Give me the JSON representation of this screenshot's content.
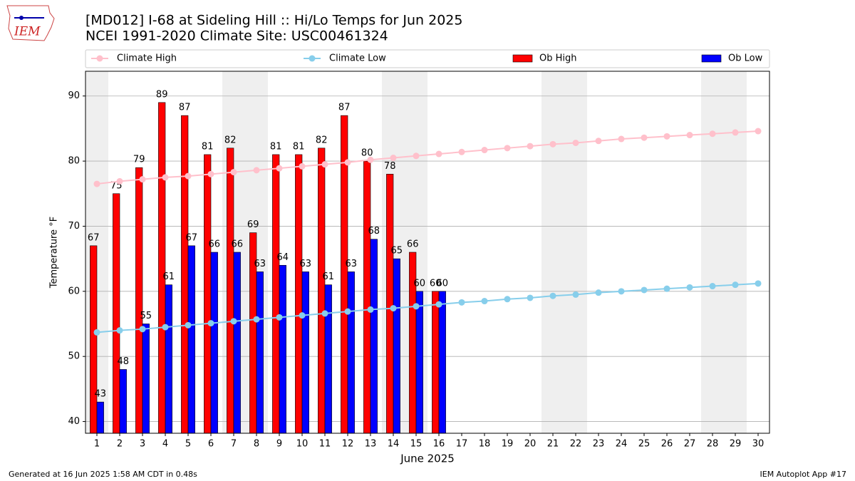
{
  "chart_data": {
    "type": "bar_line",
    "title": "[MD012] I-68 at Sideling Hill :: Hi/Lo Temps for Jun 2025",
    "subtitle": "NCEI 1991-2020 Climate Site: USC00461324",
    "logo_text": "IEM",
    "x_label": "June 2025",
    "y_label": "Temperature °F",
    "footer_left": "Generated at 16 Jun 2025 1:58 AM CDT in 0.48s",
    "footer_right": "IEM Autoplot App #17",
    "x": [
      1,
      2,
      3,
      4,
      5,
      6,
      7,
      8,
      9,
      10,
      11,
      12,
      13,
      14,
      15,
      16,
      17,
      18,
      19,
      20,
      21,
      22,
      23,
      24,
      25,
      26,
      27,
      28,
      29,
      30
    ],
    "xlim": [
      0.5,
      30.5
    ],
    "xticks": [
      1,
      2,
      3,
      4,
      5,
      6,
      7,
      8,
      9,
      10,
      11,
      12,
      13,
      14,
      15,
      16,
      17,
      18,
      19,
      20,
      21,
      22,
      23,
      24,
      25,
      26,
      27,
      28,
      29,
      30
    ],
    "ylim": [
      38.2,
      93.8
    ],
    "yticks": [
      40,
      50,
      60,
      70,
      80,
      90
    ],
    "grid": true,
    "shade_spans": [
      [
        0.5,
        1.5
      ],
      [
        6.5,
        8.5
      ],
      [
        13.5,
        15.5
      ],
      [
        20.5,
        22.5
      ],
      [
        27.5,
        29.5
      ]
    ],
    "shade_color": "#efefef",
    "legend": "top",
    "series": [
      {
        "name": "Climate High",
        "type": "line",
        "color": "#ffc0cb",
        "values": [
          76.5,
          76.9,
          77.2,
          77.5,
          77.7,
          78.0,
          78.3,
          78.6,
          78.9,
          79.2,
          79.5,
          79.8,
          80.2,
          80.5,
          80.8,
          81.1,
          81.4,
          81.7,
          82.0,
          82.3,
          82.6,
          82.8,
          83.1,
          83.4,
          83.6,
          83.8,
          84.0,
          84.2,
          84.4,
          84.6
        ]
      },
      {
        "name": "Climate Low",
        "type": "line",
        "color": "#87ceeb",
        "values": [
          53.7,
          54.0,
          54.2,
          54.5,
          54.8,
          55.1,
          55.4,
          55.7,
          56.0,
          56.3,
          56.6,
          56.9,
          57.2,
          57.4,
          57.7,
          58.0,
          58.3,
          58.5,
          58.8,
          59.0,
          59.3,
          59.5,
          59.8,
          60.0,
          60.2,
          60.4,
          60.6,
          60.8,
          61.0,
          61.2
        ]
      },
      {
        "name": "Ob High",
        "type": "bar",
        "color": "#ff0000",
        "values": [
          67,
          75,
          79,
          89,
          87,
          81,
          82,
          69,
          81,
          81,
          82,
          87,
          80,
          78,
          66,
          60,
          null,
          null,
          null,
          null,
          null,
          null,
          null,
          null,
          null,
          null,
          null,
          null,
          null,
          null
        ]
      },
      {
        "name": "Ob Low",
        "type": "bar",
        "color": "#0000ff",
        "values": [
          43,
          48,
          55,
          61,
          67,
          66,
          66,
          63,
          64,
          63,
          61,
          63,
          68,
          65,
          60,
          60,
          null,
          null,
          null,
          null,
          null,
          null,
          null,
          null,
          null,
          null,
          null,
          null,
          null,
          null
        ]
      }
    ]
  }
}
